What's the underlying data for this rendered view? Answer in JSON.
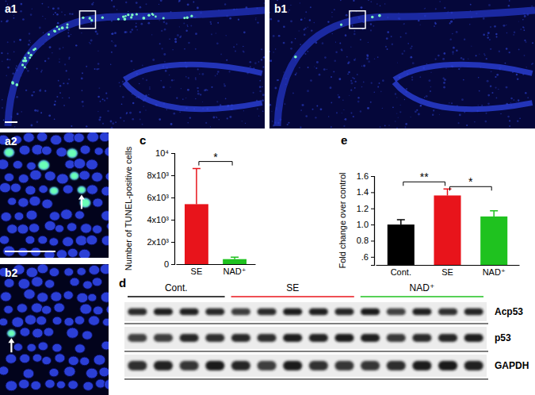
{
  "chart_data": [
    {
      "type": "bar",
      "title": "c",
      "y_label": "Number of TUNEL-positive cells",
      "categories": [
        "SE",
        "NAD⁺"
      ],
      "values": [
        5400,
        450
      ],
      "errors": [
        3200,
        180
      ],
      "colors": [
        "#e8141b",
        "#1fc21f"
      ],
      "ylim": [
        0,
        10000
      ],
      "yticks": [
        0,
        {
          "value": 2000,
          "label": "2x10³"
        },
        {
          "value": 4000,
          "label": "4x10³"
        },
        {
          "value": 6000,
          "label": "6x10³"
        },
        {
          "value": 8000,
          "label": "8x10³"
        },
        {
          "value": 10000,
          "label": "10⁴"
        }
      ],
      "significance": [
        {
          "between": [
            "SE",
            "NAD⁺"
          ],
          "label": "*"
        }
      ]
    },
    {
      "type": "bar",
      "title": "e",
      "y_label": "Fold change over control",
      "categories": [
        "Cont.",
        "SE",
        "NAD⁺"
      ],
      "values": [
        1.0,
        1.36,
        1.1
      ],
      "errors": [
        0.06,
        0.08,
        0.07
      ],
      "colors": [
        "#000000",
        "#e8141b",
        "#1fc21f"
      ],
      "ylim": [
        0.5,
        1.6
      ],
      "yticks": [
        {
          "value": 0.6,
          "label": ".6"
        },
        {
          "value": 0.8,
          "label": "0.8"
        },
        {
          "value": 1,
          "label": "1.0"
        },
        {
          "value": 1.2,
          "label": "1.2"
        },
        {
          "value": 1.4,
          "label": "1.4"
        },
        {
          "value": 1.6,
          "label": "1.6"
        }
      ],
      "significance": [
        {
          "between": [
            "Cont.",
            "SE"
          ],
          "label": "**"
        },
        {
          "between": [
            "SE",
            "NAD⁺"
          ],
          "label": "*"
        }
      ]
    }
  ],
  "figure": {
    "images": [
      {
        "label": "a1"
      },
      {
        "label": "b1"
      },
      {
        "label": "a2"
      },
      {
        "label": "b2"
      }
    ],
    "blot": {
      "title": "d",
      "groups": [
        {
          "label": "Cont.",
          "color": "#000000",
          "lanes": 4
        },
        {
          "label": "SE",
          "color": "#e8141b",
          "lanes": 5
        },
        {
          "label": "NAD⁺",
          "color": "#1fc21f",
          "lanes": 5
        }
      ],
      "rows": [
        "Acp53",
        "p53",
        "GAPDH"
      ]
    }
  }
}
